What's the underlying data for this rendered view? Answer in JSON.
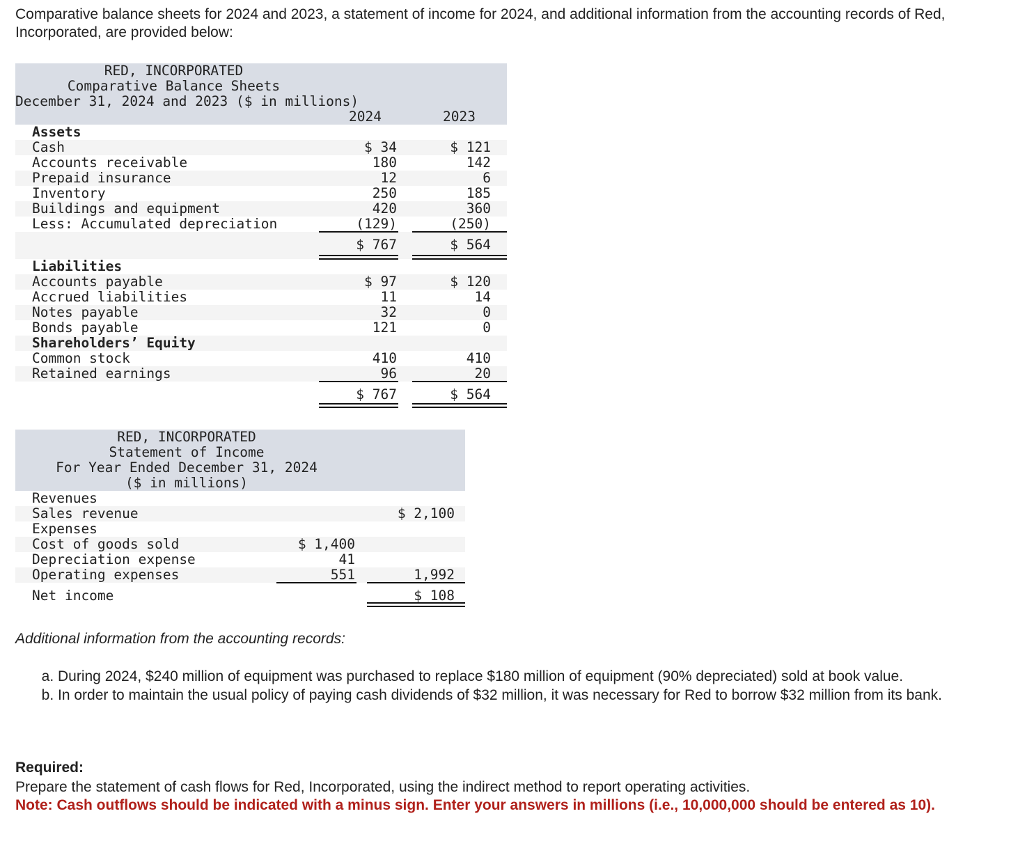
{
  "intro": "Comparative balance sheets for 2024 and 2023, a statement of income for 2024, and additional information from the accounting records of Red, Incorporated, are provided below:",
  "balance_sheet": {
    "title": [
      "RED, INCORPORATED",
      "Comparative Balance Sheets",
      "December 31, 2024 and 2023 ($ in millions)"
    ],
    "years": [
      "2024",
      "2023"
    ],
    "rows": [
      {
        "label": "Assets",
        "bold": true,
        "v": [
          "",
          ""
        ]
      },
      {
        "label": "Cash",
        "v": [
          "$ 34",
          "$ 121"
        ]
      },
      {
        "label": "Accounts receivable",
        "v": [
          "180",
          "142"
        ]
      },
      {
        "label": "Prepaid insurance",
        "v": [
          "12",
          "6"
        ]
      },
      {
        "label": "Inventory",
        "v": [
          "250",
          "185"
        ]
      },
      {
        "label": "Buildings and equipment",
        "v": [
          "420",
          "360"
        ]
      },
      {
        "label": "Less: Accumulated depreciation",
        "v": [
          "(129)",
          "(250)"
        ]
      },
      {
        "label": "",
        "total": true,
        "v": [
          "$ 767",
          "$ 564"
        ]
      },
      {
        "label": "Liabilities",
        "bold": true,
        "v": [
          "",
          ""
        ]
      },
      {
        "label": "Accounts payable",
        "v": [
          "$ 97",
          "$ 120"
        ]
      },
      {
        "label": "Accrued liabilities",
        "v": [
          "11",
          "14"
        ]
      },
      {
        "label": "Notes payable",
        "v": [
          "32",
          "0"
        ]
      },
      {
        "label": "Bonds payable",
        "v": [
          "121",
          "0"
        ]
      },
      {
        "label": "Shareholders’ Equity",
        "bold": true,
        "v": [
          "",
          ""
        ]
      },
      {
        "label": "Common stock",
        "v": [
          "410",
          "410"
        ]
      },
      {
        "label": "Retained earnings",
        "v": [
          "96",
          "20"
        ]
      },
      {
        "label": "",
        "total": true,
        "v": [
          "$ 767",
          "$ 564"
        ]
      }
    ]
  },
  "income_statement": {
    "title": [
      "RED, INCORPORATED",
      "Statement of Income",
      "For Year Ended December 31, 2024",
      "($ in millions)"
    ],
    "rows": [
      {
        "label": "Revenues",
        "v": [
          "",
          ""
        ]
      },
      {
        "label": "Sales revenue",
        "v": [
          "",
          "$ 2,100"
        ]
      },
      {
        "label": "Expenses",
        "v": [
          "",
          ""
        ]
      },
      {
        "label": "Cost of goods sold",
        "v": [
          "$ 1,400",
          ""
        ]
      },
      {
        "label": "Depreciation expense",
        "v": [
          "41",
          ""
        ]
      },
      {
        "label": "Operating expenses",
        "v": [
          "551",
          "1,992"
        ]
      },
      {
        "label": "Net income",
        "v": [
          "",
          "$ 108"
        ]
      }
    ]
  },
  "additional_heading": "Additional information from the accounting records:",
  "additional_items": [
    "During 2024, $240 million of equipment was purchased to replace $180 million of equipment (90% depreciated) sold at book value.",
    "In order to maintain the usual policy of paying cash dividends of $32 million, it was necessary for Red to borrow $32 million from its bank."
  ],
  "required_label": "Required:",
  "required_text": "Prepare the statement of cash flows for Red, Incorporated, using the indirect method to report operating activities.",
  "note": "Note: Cash outflows should be indicated with a minus sign. Enter your answers in millions (i.e., 10,000,000 should be entered as 10).",
  "colors": {
    "header_bg": "#d9dde5",
    "row_shade": "#f4f4f4",
    "note": "#b0201a"
  }
}
